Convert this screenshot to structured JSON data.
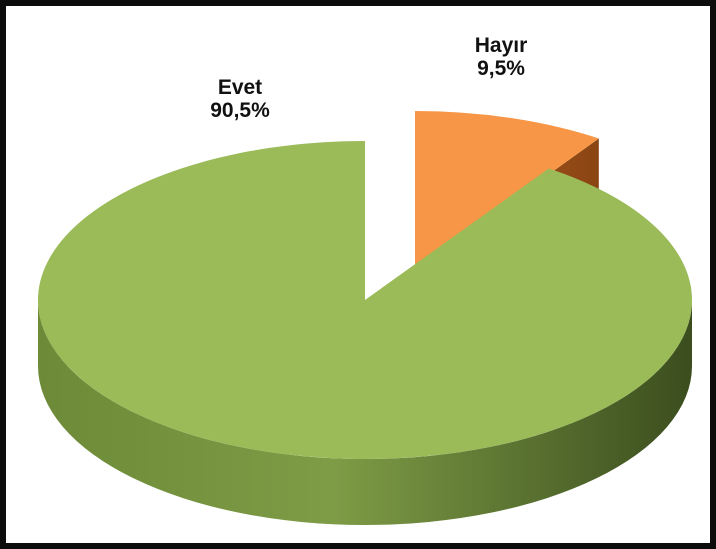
{
  "chart_data": {
    "type": "pie",
    "style": "3d-exploded",
    "slices": [
      {
        "name": "Evet",
        "value": 90.5,
        "value_label": "90,5%",
        "color": "#9bbb59"
      },
      {
        "name": "Hayır",
        "value": 9.5,
        "value_label": "9,5%",
        "color": "#f79646"
      }
    ],
    "legend": "none"
  }
}
